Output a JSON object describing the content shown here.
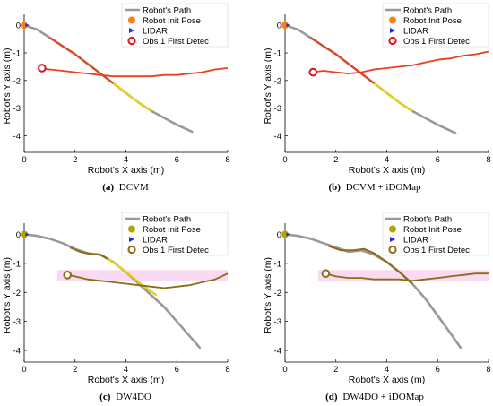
{
  "figure": {
    "panels": [
      {
        "letter": "(a)",
        "caption": "DCVM"
      },
      {
        "letter": "(b)",
        "caption": "DCVM + iDOMap"
      },
      {
        "letter": "(c)",
        "caption": "DW4DO"
      },
      {
        "letter": "(d)",
        "caption": "DW4DO + iDOMap"
      }
    ]
  },
  "colors": {
    "path": "#999999",
    "dcvm_pose": "#ff7f0e",
    "dcvm_track": "#e8401c",
    "dw4do_pose": "#b8a200",
    "dw4do_track": "#8c6d16",
    "lidar": "#1f2fd6",
    "obs": "#d6141c",
    "yellow_segment": "#e6d21a",
    "pink_band": "#f6d2f0"
  },
  "chart_data": [
    {
      "type": "line",
      "panel": "a",
      "xlabel": "Robot's X axis (m)",
      "ylabel": "Robot's Y axis (m)",
      "xlim": [
        0,
        8
      ],
      "ylim": [
        -4.6,
        0.2
      ],
      "xticks": [
        0,
        2,
        4,
        6,
        8
      ],
      "yticks": [
        0,
        -1,
        -2,
        -3,
        -4
      ],
      "legend": [
        "Robot's Path",
        "Robot Init Pose",
        "LIDAR",
        "Obs 1 First Detec"
      ],
      "legend_position": "top-right",
      "robot_path": {
        "x": [
          0,
          0.5,
          1.0,
          1.5,
          2.0,
          2.5,
          3.0,
          3.5,
          4.0,
          4.5,
          5.0,
          5.5,
          6.0,
          6.6
        ],
        "y": [
          0,
          -0.15,
          -0.45,
          -0.75,
          -1.05,
          -1.4,
          -1.75,
          -2.1,
          -2.45,
          -2.8,
          -3.1,
          -3.35,
          -3.6,
          -3.85
        ]
      },
      "robot_highlight": {
        "x": [
          1.0,
          1.5,
          2.0,
          2.5,
          3.0,
          3.5
        ],
        "y": [
          -0.45,
          -0.75,
          -1.05,
          -1.4,
          -1.75,
          -2.1
        ]
      },
      "yellow_segment": {
        "x": [
          3.5,
          4.0,
          4.5,
          5.0
        ],
        "y": [
          -2.1,
          -2.45,
          -2.8,
          -3.1
        ]
      },
      "obstacle_track": {
        "x": [
          0.6,
          1.0,
          1.5,
          2.0,
          2.5,
          3.0,
          3.5,
          4.0,
          4.5,
          5.0,
          5.5,
          6.0,
          6.5,
          7.0,
          7.5,
          8.0
        ],
        "y": [
          -1.55,
          -1.6,
          -1.65,
          -1.7,
          -1.75,
          -1.8,
          -1.85,
          -1.85,
          -1.85,
          -1.85,
          -1.8,
          -1.8,
          -1.75,
          -1.7,
          -1.6,
          -1.55
        ]
      },
      "init_pose": {
        "x": 0,
        "y": 0
      },
      "obs_first_detec": {
        "x": 0.7,
        "y": -1.55
      },
      "scheme": "dcvm",
      "band": false
    },
    {
      "type": "line",
      "panel": "b",
      "xlabel": "Robot's X axis (m)",
      "ylabel": "Robot's Y axis (m)",
      "xlim": [
        0,
        8
      ],
      "ylim": [
        -4.6,
        0.2
      ],
      "xticks": [
        0,
        2,
        4,
        6,
        8
      ],
      "yticks": [
        0,
        -1,
        -2,
        -3,
        -4
      ],
      "legend": [
        "Robot's Path",
        "Robot Init Pose",
        "LIDAR",
        "Obs 1 First Detec"
      ],
      "legend_position": "top-right",
      "robot_path": {
        "x": [
          0,
          0.5,
          1.0,
          1.5,
          2.0,
          2.5,
          3.0,
          3.5,
          4.0,
          4.5,
          5.0,
          5.5,
          6.0,
          6.7
        ],
        "y": [
          0,
          -0.15,
          -0.45,
          -0.75,
          -1.05,
          -1.4,
          -1.75,
          -2.1,
          -2.45,
          -2.8,
          -3.1,
          -3.35,
          -3.6,
          -3.9
        ]
      },
      "robot_highlight": {
        "x": [
          1.0,
          1.5,
          2.0,
          2.5,
          3.0,
          3.5
        ],
        "y": [
          -0.45,
          -0.75,
          -1.05,
          -1.4,
          -1.75,
          -2.1
        ]
      },
      "yellow_segment": {
        "x": [
          3.5,
          4.0,
          4.5,
          5.0
        ],
        "y": [
          -2.1,
          -2.45,
          -2.8,
          -3.1
        ]
      },
      "obstacle_track": {
        "x": [
          1.1,
          1.5,
          2.0,
          2.5,
          3.0,
          3.5,
          4.0,
          4.5,
          5.0,
          5.5,
          6.0,
          6.5,
          7.0,
          7.5,
          8.0
        ],
        "y": [
          -1.7,
          -1.65,
          -1.7,
          -1.75,
          -1.7,
          -1.6,
          -1.55,
          -1.5,
          -1.45,
          -1.35,
          -1.25,
          -1.2,
          -1.1,
          -1.05,
          -0.95
        ]
      },
      "init_pose": {
        "x": 0,
        "y": 0
      },
      "obs_first_detec": {
        "x": 1.1,
        "y": -1.7
      },
      "scheme": "dcvm",
      "band": false
    },
    {
      "type": "line",
      "panel": "c",
      "xlabel": "Robot's X axis (m)",
      "ylabel": "Robot's Y axis (m)",
      "xlim": [
        0,
        8
      ],
      "ylim": [
        -4.4,
        0.2
      ],
      "xticks": [
        0,
        2,
        4,
        6,
        8
      ],
      "yticks": [
        0,
        -1,
        -2,
        -3,
        -4
      ],
      "legend": [
        "Robot's Path",
        "Robot Init Pose",
        "LIDAR",
        "Obs 1 First Detec"
      ],
      "legend_position": "top-right",
      "robot_path": {
        "x": [
          0,
          0.5,
          1.0,
          1.5,
          2.0,
          2.5,
          3.0,
          3.5,
          4.0,
          4.5,
          5.0,
          5.5,
          6.0,
          6.5,
          6.9
        ],
        "y": [
          0,
          -0.05,
          -0.15,
          -0.3,
          -0.5,
          -0.65,
          -0.7,
          -0.95,
          -1.3,
          -1.7,
          -2.1,
          -2.5,
          -3.0,
          -3.5,
          -3.9
        ]
      },
      "robot_highlight": {
        "x": [
          1.8,
          2.2,
          2.6,
          3.0,
          3.3
        ],
        "y": [
          -0.45,
          -0.6,
          -0.68,
          -0.7,
          -0.85
        ]
      },
      "yellow_segment": {
        "x": [
          3.3,
          3.8,
          4.3,
          4.8,
          5.2
        ],
        "y": [
          -0.85,
          -1.15,
          -1.5,
          -1.85,
          -2.1
        ]
      },
      "obstacle_track": {
        "x": [
          1.7,
          2.0,
          2.5,
          3.0,
          3.5,
          4.0,
          4.5,
          5.0,
          5.5,
          6.0,
          6.5,
          7.0,
          7.5,
          8.0
        ],
        "y": [
          -1.4,
          -1.45,
          -1.55,
          -1.6,
          -1.65,
          -1.7,
          -1.75,
          -1.8,
          -1.85,
          -1.8,
          -1.75,
          -1.65,
          -1.55,
          -1.35
        ]
      },
      "init_pose": {
        "x": 0,
        "y": 0
      },
      "obs_first_detec": {
        "x": 1.7,
        "y": -1.4
      },
      "scheme": "dw4do",
      "band": true
    },
    {
      "type": "line",
      "panel": "d",
      "xlabel": "Robot's X axis (m)",
      "ylabel": "Robot's Y axis (m)",
      "xlim": [
        0,
        8
      ],
      "ylim": [
        -4.4,
        0.2
      ],
      "xticks": [
        0,
        2,
        4,
        6,
        8
      ],
      "yticks": [
        0,
        -1,
        -2,
        -3,
        -4
      ],
      "legend": [
        "Robot's Path",
        "Robot Init Pose",
        "LIDAR",
        "Obs 1 First Detec"
      ],
      "legend_position": "top-right",
      "robot_path": {
        "x": [
          0,
          0.5,
          1.0,
          1.5,
          2.0,
          2.5,
          3.0,
          3.5,
          4.0,
          4.5,
          5.0,
          5.5,
          6.0,
          6.5,
          6.9
        ],
        "y": [
          0,
          -0.05,
          -0.15,
          -0.3,
          -0.45,
          -0.6,
          -0.55,
          -0.7,
          -0.95,
          -1.3,
          -1.7,
          -2.2,
          -2.8,
          -3.4,
          -3.9
        ]
      },
      "robot_highlight": {
        "x": [
          1.7,
          2.2,
          2.7,
          3.1,
          3.5,
          4.0,
          4.5,
          5.0
        ],
        "y": [
          -0.4,
          -0.55,
          -0.55,
          -0.5,
          -0.65,
          -0.95,
          -1.3,
          -1.7
        ]
      },
      "yellow_segment": {
        "x": [],
        "y": []
      },
      "obstacle_track": {
        "x": [
          1.6,
          2.0,
          2.5,
          3.0,
          3.5,
          4.0,
          4.5,
          5.0,
          5.5,
          6.0,
          6.5,
          7.0,
          7.5,
          8.0
        ],
        "y": [
          -1.35,
          -1.45,
          -1.5,
          -1.5,
          -1.55,
          -1.55,
          -1.55,
          -1.6,
          -1.55,
          -1.5,
          -1.45,
          -1.4,
          -1.35,
          -1.35
        ]
      },
      "init_pose": {
        "x": 0,
        "y": 0
      },
      "obs_first_detec": {
        "x": 1.6,
        "y": -1.35
      },
      "scheme": "dw4do",
      "band": true
    }
  ]
}
